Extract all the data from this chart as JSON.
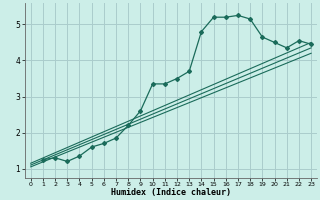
{
  "xlabel": "Humidex (Indice chaleur)",
  "bg_color": "#cceee8",
  "grid_color": "#aacccc",
  "line_color": "#1a6b5a",
  "xlim": [
    -0.5,
    23.5
  ],
  "ylim": [
    0.75,
    5.6
  ],
  "yticks": [
    1,
    2,
    3,
    4,
    5
  ],
  "xticks": [
    0,
    1,
    2,
    3,
    4,
    5,
    6,
    7,
    8,
    9,
    10,
    11,
    12,
    13,
    14,
    15,
    16,
    17,
    18,
    19,
    20,
    21,
    22,
    23
  ],
  "curve": {
    "x": [
      1,
      2,
      3,
      4,
      5,
      6,
      7,
      8,
      9,
      10,
      11,
      12,
      13,
      14,
      15,
      16,
      17,
      18,
      19,
      20,
      21,
      22,
      23
    ],
    "y": [
      1.25,
      1.3,
      1.2,
      1.35,
      1.6,
      1.7,
      1.85,
      2.2,
      2.6,
      3.35,
      3.35,
      3.5,
      3.7,
      4.8,
      5.2,
      5.2,
      5.25,
      5.15,
      4.65,
      4.5,
      4.35,
      4.55,
      4.45
    ]
  },
  "straight_lines": [
    {
      "x": [
        0,
        23
      ],
      "y": [
        1.05,
        4.2
      ]
    },
    {
      "x": [
        0,
        23
      ],
      "y": [
        1.1,
        4.35
      ]
    },
    {
      "x": [
        0,
        23
      ],
      "y": [
        1.15,
        4.5
      ]
    }
  ]
}
